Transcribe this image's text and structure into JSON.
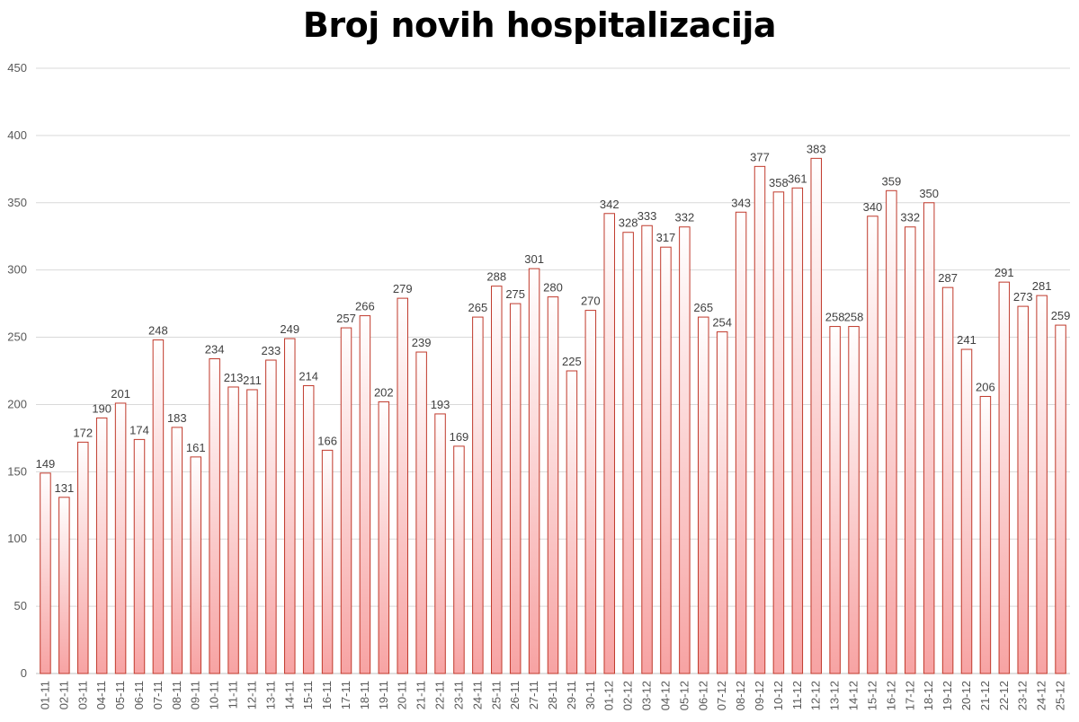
{
  "chart_data": {
    "type": "bar",
    "title": "Broj novih hospitalizacija",
    "xlabel": "",
    "ylabel": "",
    "ylim": [
      0,
      450
    ],
    "yticks": [
      0,
      50,
      100,
      150,
      200,
      250,
      300,
      350,
      400,
      450
    ],
    "grid": true,
    "legend": "none",
    "colors": {
      "bar_top": "#ffffff",
      "bar_bottom": "#f7a3a3",
      "bar_border": "#c0392b"
    },
    "categories": [
      "01-11",
      "02-11",
      "03-11",
      "04-11",
      "05-11",
      "06-11",
      "07-11",
      "08-11",
      "09-11",
      "10-11",
      "11-11",
      "12-11",
      "13-11",
      "14-11",
      "15-11",
      "16-11",
      "17-11",
      "18-11",
      "19-11",
      "20-11",
      "21-11",
      "22-11",
      "23-11",
      "24-11",
      "25-11",
      "26-11",
      "27-11",
      "28-11",
      "29-11",
      "30-11",
      "01-12",
      "02-12",
      "03-12",
      "04-12",
      "05-12",
      "06-12",
      "07-12",
      "08-12",
      "09-12",
      "10-12",
      "11-12",
      "12-12",
      "13-12",
      "14-12",
      "15-12",
      "16-12",
      "17-12",
      "18-12",
      "19-12",
      "20-12",
      "21-12",
      "22-12",
      "23-12",
      "24-12",
      "25-12"
    ],
    "values": [
      149,
      131,
      172,
      190,
      201,
      174,
      248,
      183,
      161,
      234,
      213,
      211,
      233,
      249,
      214,
      166,
      257,
      266,
      202,
      279,
      239,
      193,
      169,
      265,
      288,
      275,
      301,
      280,
      225,
      270,
      342,
      328,
      333,
      317,
      332,
      265,
      254,
      343,
      377,
      358,
      361,
      383,
      258,
      258,
      340,
      359,
      332,
      350,
      287,
      241,
      206,
      291,
      273,
      281,
      259
    ]
  }
}
